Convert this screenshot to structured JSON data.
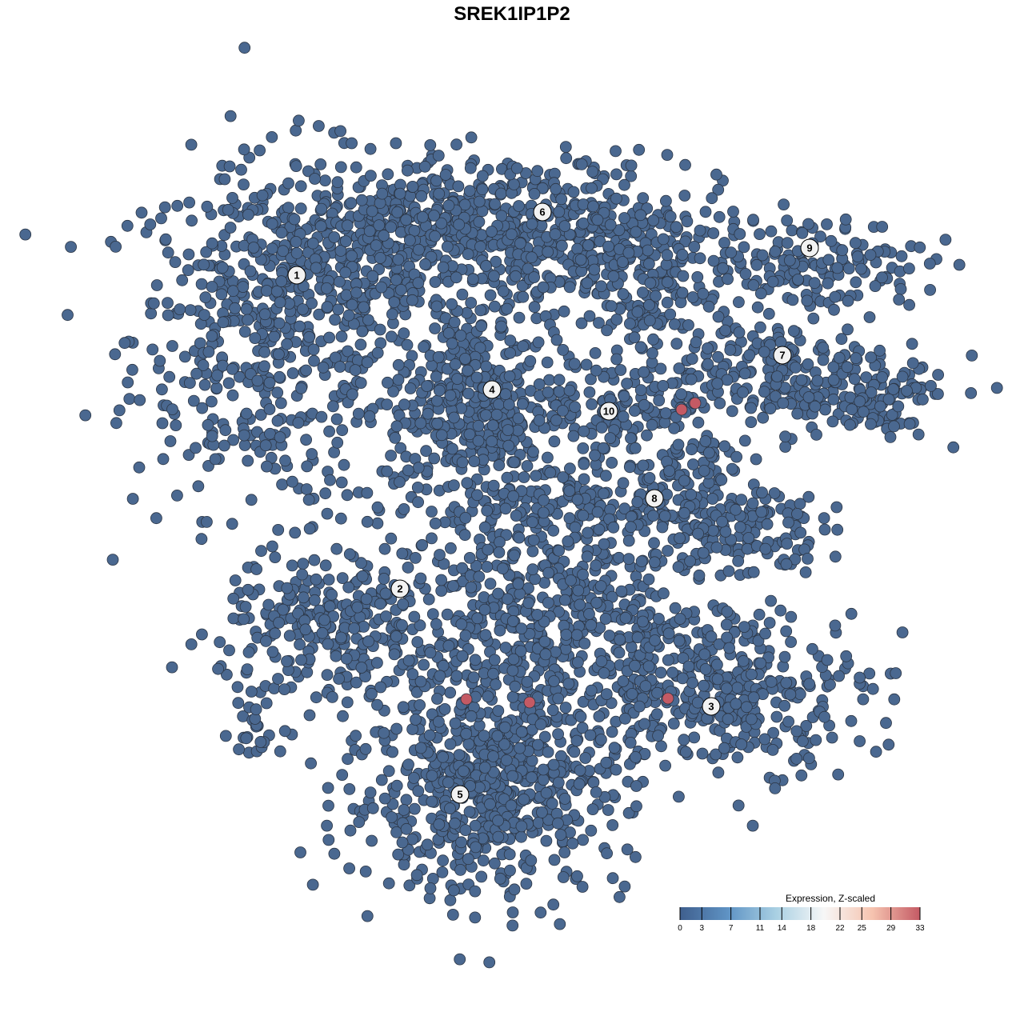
{
  "chart_data": {
    "type": "scatter",
    "title": "SREK1IP1P2",
    "xlabel": "",
    "ylabel": "",
    "grid": false,
    "axes_visible": false,
    "point_color_low": "#4a6890",
    "point_color_high": "#c45a64",
    "clusters": [
      {
        "label": "1",
        "x": -29.4,
        "y": 29.6
      },
      {
        "label": "2",
        "x": -16.5,
        "y": -9.6
      },
      {
        "label": "3",
        "x": 22.4,
        "y": -24.3
      },
      {
        "label": "4",
        "x": -5.0,
        "y": 15.3
      },
      {
        "label": "5",
        "x": -9.0,
        "y": -35.3
      },
      {
        "label": "6",
        "x": 1.3,
        "y": 37.5
      },
      {
        "label": "7",
        "x": 31.3,
        "y": 19.6
      },
      {
        "label": "8",
        "x": 15.3,
        "y": 1.7
      },
      {
        "label": "9",
        "x": 34.7,
        "y": 33.0
      },
      {
        "label": "10",
        "x": 9.6,
        "y": 12.6
      }
    ],
    "high_expression_points": [
      {
        "x": 18.7,
        "y": 12.8,
        "value": 33
      },
      {
        "x": 20.4,
        "y": 13.6,
        "value": 33
      },
      {
        "x": -8.2,
        "y": -23.4,
        "value": 33
      },
      {
        "x": -0.3,
        "y": -23.8,
        "value": 33
      },
      {
        "x": 17.0,
        "y": -23.3,
        "value": 33
      }
    ],
    "baseline_value": 0,
    "legend": {
      "title": "Expression, Z-scaled",
      "placement": "bottom-right",
      "range": [
        0,
        33
      ],
      "ticks": [
        "0",
        "3",
        "7",
        "11",
        "14",
        "18",
        "22",
        "25",
        "29",
        "33"
      ],
      "colors": [
        "#3f5f8e",
        "#5f93c4",
        "#a9d0e3",
        "#f7f7f7",
        "#f6c4b0",
        "#c45a64"
      ]
    }
  }
}
